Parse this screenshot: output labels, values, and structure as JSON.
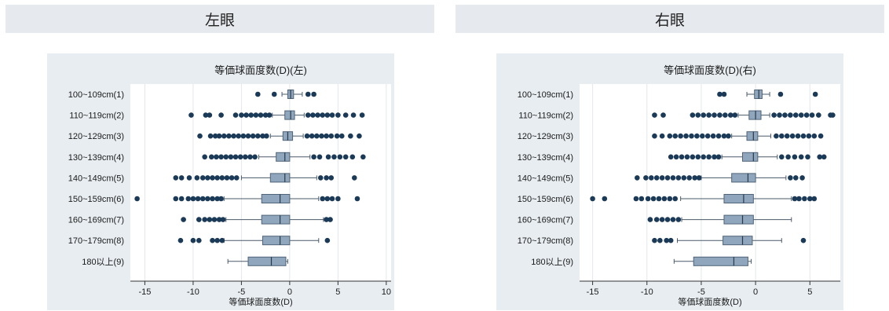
{
  "headers": {
    "left": "左眼",
    "right": "右眼"
  },
  "colors": {
    "box_fill": "#8fa6bd",
    "outlier": "#1b3a57",
    "line": "#4a5a6a",
    "background": "#e8edf1",
    "plot_area": "#ffffff",
    "grid": "#e3e7ec"
  },
  "chart_data": [
    {
      "type": "boxplot",
      "orientation": "horizontal",
      "title": "等価球面度数(D)(左)",
      "xlabel": "等価球面度数(D)",
      "xlim": [
        -16.5,
        10.5
      ],
      "xticks": [
        -15,
        -10,
        -5,
        0,
        5,
        10
      ],
      "xtick_labels": [
        "-15",
        "-10",
        "-5",
        "0",
        "5",
        "10"
      ],
      "grid": true,
      "categories": [
        "100~109cm(1)",
        "110~119cm(2)",
        "120~129cm(3)",
        "130~139cm(4)",
        "140~149cm(5)",
        "150~159cm(6)",
        "160~169cm(7)",
        "170~179cm(8)",
        "180以上(9)"
      ],
      "boxes": [
        {
          "whisker_low": -0.8,
          "q1": -0.2,
          "median": 0.1,
          "q3": 0.4,
          "whisker_high": 1.3,
          "outliers": [
            -3.3,
            -1.6,
            1.9,
            2.5
          ]
        },
        {
          "whisker_low": -1.8,
          "q1": -0.5,
          "median": 0.1,
          "q3": 0.5,
          "whisker_high": 1.5,
          "outliers": [
            -10.2,
            -8.7,
            -8.3,
            -7.1,
            -5.6,
            -5.0,
            -4.5,
            -4.0,
            -3.5,
            -3.0,
            -2.5,
            -2.1,
            1.9,
            2.4,
            2.9,
            3.4,
            3.9,
            4.4,
            5.0,
            5.8,
            6.6,
            7.5
          ]
        },
        {
          "whisker_low": -2.0,
          "q1": -0.7,
          "median": -0.2,
          "q3": 0.3,
          "whisker_high": 1.4,
          "outliers": [
            -9.3,
            -8.2,
            -7.7,
            -7.3,
            -6.8,
            -6.3,
            -5.8,
            -5.3,
            -4.8,
            -4.3,
            -3.8,
            -3.3,
            -2.8,
            -2.4,
            1.8,
            2.3,
            2.8,
            3.3,
            3.8,
            4.3,
            4.9,
            5.4,
            6.3,
            7.2
          ]
        },
        {
          "whisker_low": -3.2,
          "q1": -1.4,
          "median": -0.5,
          "q3": 0.0,
          "whisker_high": 2.1,
          "outliers": [
            -8.8,
            -8.1,
            -7.6,
            -7.1,
            -6.6,
            -6.1,
            -5.6,
            -5.1,
            -4.6,
            -4.1,
            -3.6,
            2.5,
            3.1,
            4.0,
            4.6,
            5.2,
            5.8,
            6.5,
            7.6
          ]
        },
        {
          "whisker_low": -5.0,
          "q1": -2.0,
          "median": -0.5,
          "q3": 0.0,
          "whisker_high": 2.8,
          "outliers": [
            -11.8,
            -11.2,
            -10.4,
            -9.6,
            -9.0,
            -8.5,
            -8.0,
            -7.5,
            -7.0,
            -6.5,
            -6.0,
            -5.5,
            3.2,
            3.8,
            4.3,
            6.7
          ]
        },
        {
          "whisker_low": -6.8,
          "q1": -2.9,
          "median": -1.0,
          "q3": 0.0,
          "whisker_high": 3.0,
          "outliers": [
            -15.8,
            -11.8,
            -11.2,
            -10.5,
            -10.0,
            -9.5,
            -9.0,
            -8.5,
            -8.0,
            -7.5,
            -7.1,
            3.4,
            3.9,
            4.4,
            5.0,
            7.0
          ]
        },
        {
          "whisker_low": -6.6,
          "q1": -2.9,
          "median": -1.0,
          "q3": 0.0,
          "whisker_high": 3.5,
          "outliers": [
            -11.0,
            -9.4,
            -8.8,
            -8.3,
            -7.8,
            -7.3,
            -6.9,
            3.8,
            4.2
          ]
        },
        {
          "whisker_low": -6.8,
          "q1": -2.8,
          "median": -1.0,
          "q3": 0.0,
          "whisker_high": 3.0,
          "outliers": [
            -11.3,
            -10.0,
            -9.4,
            -8.0,
            -7.5,
            -7.0,
            3.9
          ]
        },
        {
          "whisker_low": -6.4,
          "q1": -4.3,
          "median": -1.9,
          "q3": -0.4,
          "whisker_high": -0.2,
          "outliers": []
        }
      ]
    },
    {
      "type": "boxplot",
      "orientation": "horizontal",
      "title": "等価球面度数(D)(右)",
      "xlabel": "等価球面度数(D)",
      "xlim": [
        -16.2,
        7.8
      ],
      "xticks": [
        -15,
        -10,
        -5,
        0,
        5
      ],
      "xtick_labels": [
        "-15",
        "-10",
        "-5",
        "0",
        "5"
      ],
      "grid": true,
      "categories": [
        "100~109cm(1)",
        "110~119cm(2)",
        "120~129cm(3)",
        "130~139cm(4)",
        "140~149cm(5)",
        "150~159cm(6)",
        "160~169cm(7)",
        "170~179cm(8)",
        "180以上(9)"
      ],
      "boxes": [
        {
          "whisker_low": -0.8,
          "q1": -0.1,
          "median": 0.3,
          "q3": 0.6,
          "whisker_high": 1.3,
          "outliers": [
            -3.3,
            -2.9,
            2.3,
            5.5
          ]
        },
        {
          "whisker_low": -1.6,
          "q1": -0.6,
          "median": 0.0,
          "q3": 0.5,
          "whisker_high": 1.3,
          "outliers": [
            -9.3,
            -8.5,
            -5.8,
            -5.3,
            -4.8,
            -4.3,
            -3.8,
            -3.3,
            -2.8,
            -2.3,
            -1.9,
            1.7,
            2.2,
            2.7,
            3.2,
            3.7,
            4.2,
            4.7,
            5.2,
            5.8,
            6.9,
            7.1
          ]
        },
        {
          "whisker_low": -2.2,
          "q1": -0.8,
          "median": -0.2,
          "q3": 0.2,
          "whisker_high": 1.4,
          "outliers": [
            -9.3,
            -8.6,
            -7.9,
            -7.4,
            -6.9,
            -6.4,
            -5.9,
            -5.4,
            -4.9,
            -4.4,
            -3.9,
            -3.4,
            -2.9,
            -2.5,
            1.9,
            2.4,
            2.9,
            3.4,
            3.9,
            4.4,
            4.9,
            5.4,
            6.0
          ]
        },
        {
          "whisker_low": -3.1,
          "q1": -1.2,
          "median": -0.2,
          "q3": 0.2,
          "whisker_high": 2.0,
          "outliers": [
            -7.8,
            -7.3,
            -6.8,
            -6.3,
            -5.8,
            -5.3,
            -4.8,
            -4.3,
            -3.8,
            -3.4,
            2.4,
            3.0,
            3.6,
            4.2,
            4.8,
            5.9,
            6.3
          ]
        },
        {
          "whisker_low": -5.0,
          "q1": -2.2,
          "median": -0.7,
          "q3": 0.0,
          "whisker_high": 2.8,
          "outliers": [
            -10.9,
            -10.1,
            -9.6,
            -9.1,
            -8.6,
            -8.1,
            -7.6,
            -7.1,
            -6.6,
            -6.1,
            -5.6,
            -5.2,
            3.2,
            3.7,
            4.3
          ]
        },
        {
          "whisker_low": -6.9,
          "q1": -2.9,
          "median": -1.1,
          "q3": -0.2,
          "whisker_high": 3.3,
          "outliers": [
            -15.0,
            -13.9,
            -11.0,
            -10.5,
            -9.9,
            -9.4,
            -8.9,
            -8.4,
            -7.9,
            -7.4,
            3.6,
            4.0,
            4.5,
            5.0,
            5.4
          ]
        },
        {
          "whisker_low": -6.8,
          "q1": -2.9,
          "median": -1.2,
          "q3": -0.2,
          "whisker_high": 3.3,
          "outliers": [
            -9.7,
            -9.1,
            -8.6,
            -8.1,
            -7.6,
            -7.1
          ]
        },
        {
          "whisker_low": -7.2,
          "q1": -3.0,
          "median": -1.2,
          "q3": -0.3,
          "whisker_high": 2.4,
          "outliers": [
            -9.3,
            -8.8,
            -8.2,
            -7.8,
            4.4
          ]
        },
        {
          "whisker_low": -7.5,
          "q1": -5.7,
          "median": -2.0,
          "q3": -0.7,
          "whisker_high": -0.4,
          "outliers": []
        }
      ]
    }
  ]
}
